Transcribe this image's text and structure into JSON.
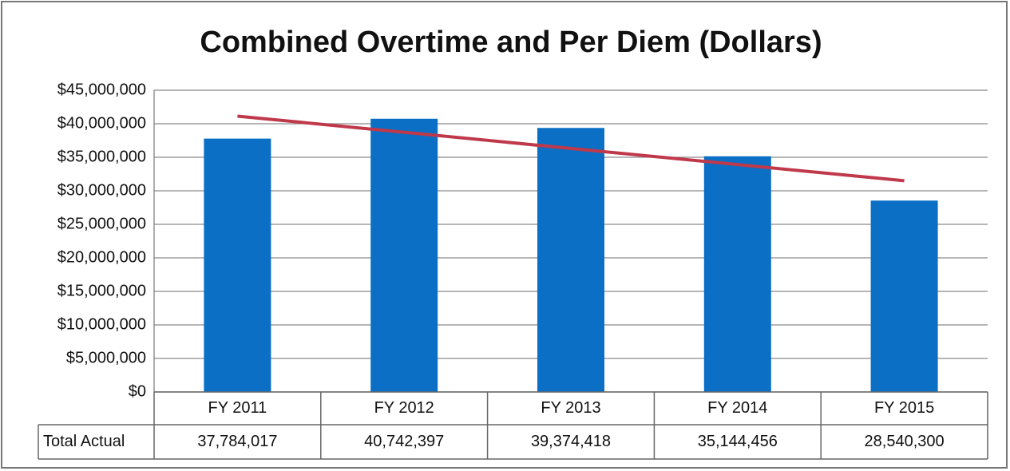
{
  "chart_data": {
    "type": "bar",
    "title": "Combined Overtime and Per Diem (Dollars)",
    "categories": [
      "FY 2011",
      "FY 2012",
      "FY 2013",
      "FY 2014",
      "FY 2015"
    ],
    "series": [
      {
        "name": "Total Actual",
        "color": "#0b6fc6",
        "values": [
          37784017,
          40742397,
          39374418,
          35144456,
          28540300
        ],
        "value_labels": [
          "37,784,017",
          "40,742,397",
          "39,374,418",
          "35,144,456",
          "28,540,300"
        ]
      }
    ],
    "ylim": [
      0,
      45000000
    ],
    "yticks": [
      {
        "value": 0,
        "label": "$0"
      },
      {
        "value": 5000000,
        "label": "$5,000,000"
      },
      {
        "value": 10000000,
        "label": "$10,000,000"
      },
      {
        "value": 15000000,
        "label": "$15,000,000"
      },
      {
        "value": 20000000,
        "label": "$20,000,000"
      },
      {
        "value": 25000000,
        "label": "$25,000,000"
      },
      {
        "value": 30000000,
        "label": "$30,000,000"
      },
      {
        "value": 35000000,
        "label": "$35,000,000"
      },
      {
        "value": 40000000,
        "label": "$40,000,000"
      },
      {
        "value": 45000000,
        "label": "$45,000,000"
      }
    ],
    "grid": true,
    "trendline": {
      "type": "linear",
      "color": "#c0394b"
    },
    "data_table": true
  }
}
